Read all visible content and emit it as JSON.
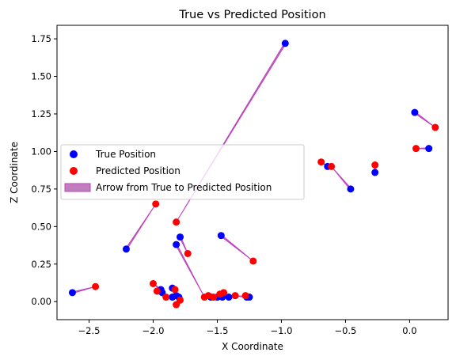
{
  "chart_data": {
    "type": "scatter",
    "title": "True vs Predicted Position",
    "xlabel": "X Coordinate",
    "ylabel": "Z Coordinate",
    "xlim": [
      -2.75,
      0.3
    ],
    "ylim": [
      -0.12,
      1.84
    ],
    "xticks": [
      -2.5,
      -2.0,
      -1.5,
      -1.0,
      -0.5,
      0.0
    ],
    "xtick_labels": [
      "−2.5",
      "−2.0",
      "−1.5",
      "−1.0",
      "−0.5",
      "0.0"
    ],
    "yticks": [
      0.0,
      0.25,
      0.5,
      0.75,
      1.0,
      1.25,
      1.5,
      1.75
    ],
    "ytick_labels": [
      "0.00",
      "0.25",
      "0.50",
      "0.75",
      "1.00",
      "1.25",
      "1.50",
      "1.75"
    ],
    "grid": false,
    "legend_position": "center-left",
    "legend": {
      "true": "True Position",
      "predicted": "Predicted Position",
      "arrow": "Arrow from True to Predicted Position"
    },
    "colors": {
      "true": "#0000ff",
      "predicted": "#ff0000",
      "arrow_fill": "#bf7fbf",
      "arrow_edge": "#bf40bf"
    },
    "pairs": [
      {
        "true": [
          -2.63,
          0.06
        ],
        "predicted": [
          -2.45,
          0.1
        ]
      },
      {
        "true": [
          -2.21,
          0.35
        ],
        "predicted": [
          -1.98,
          0.65
        ]
      },
      {
        "true": [
          -0.97,
          1.72
        ],
        "predicted": [
          -1.82,
          0.53
        ]
      },
      {
        "true": [
          -1.79,
          0.43
        ],
        "predicted": [
          -1.73,
          0.32
        ]
      },
      {
        "true": [
          -1.82,
          0.38
        ],
        "predicted": [
          -1.6,
          0.03
        ]
      },
      {
        "true": [
          -1.47,
          0.44
        ],
        "predicted": [
          -1.22,
          0.27
        ]
      },
      {
        "true": [
          -1.94,
          0.08
        ],
        "predicted": [
          -2.0,
          0.12
        ]
      },
      {
        "true": [
          -1.93,
          0.06
        ],
        "predicted": [
          -1.97,
          0.07
        ]
      },
      {
        "true": [
          -1.85,
          0.09
        ],
        "predicted": [
          -1.83,
          0.08
        ]
      },
      {
        "true": [
          -1.8,
          0.03
        ],
        "predicted": [
          -1.82,
          -0.02
        ]
      },
      {
        "true": [
          -1.85,
          0.03
        ],
        "predicted": [
          -1.9,
          0.03
        ]
      },
      {
        "true": [
          -1.82,
          0.04
        ],
        "predicted": [
          -1.79,
          0.01
        ]
      },
      {
        "true": [
          -1.55,
          0.03
        ],
        "predicted": [
          -1.57,
          0.04
        ]
      },
      {
        "true": [
          -1.5,
          0.03
        ],
        "predicted": [
          -1.53,
          0.03
        ]
      },
      {
        "true": [
          -1.46,
          0.03
        ],
        "predicted": [
          -1.48,
          0.05
        ]
      },
      {
        "true": [
          -1.41,
          0.03
        ],
        "predicted": [
          -1.45,
          0.06
        ]
      },
      {
        "true": [
          -1.27,
          0.03
        ],
        "predicted": [
          -1.36,
          0.04
        ]
      },
      {
        "true": [
          -1.25,
          0.03
        ],
        "predicted": [
          -1.28,
          0.04
        ]
      },
      {
        "true": [
          -0.64,
          0.9
        ],
        "predicted": [
          -0.69,
          0.93
        ]
      },
      {
        "true": [
          -0.46,
          0.75
        ],
        "predicted": [
          -0.61,
          0.9
        ]
      },
      {
        "true": [
          -0.27,
          0.86
        ],
        "predicted": [
          -0.27,
          0.91
        ]
      },
      {
        "true": [
          0.04,
          1.26
        ],
        "predicted": [
          0.2,
          1.16
        ]
      },
      {
        "true": [
          0.15,
          1.02
        ],
        "predicted": [
          0.05,
          1.02
        ]
      }
    ]
  }
}
